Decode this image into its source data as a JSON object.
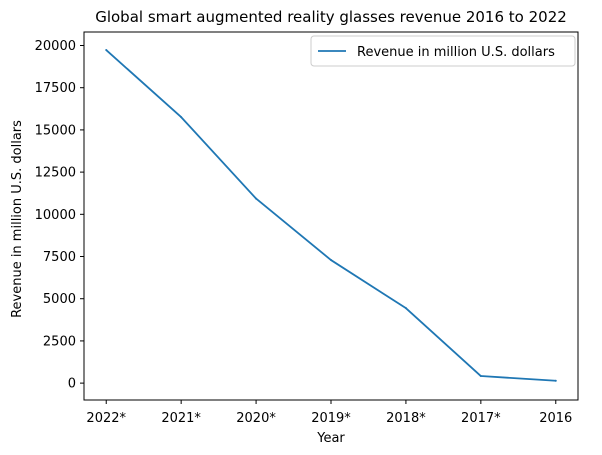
{
  "chart_data": {
    "type": "line",
    "title": "Global smart augmented reality glasses revenue 2016 to 2022",
    "xlabel": "Year",
    "ylabel": "Revenue in million U.S. dollars",
    "categories": [
      "2022*",
      "2021*",
      "2020*",
      "2019*",
      "2018*",
      "2017*",
      "2016"
    ],
    "series": [
      {
        "name": "Revenue in million U.S. dollars",
        "values": [
          19730,
          15760,
          10930,
          7290,
          4440,
          420,
          140
        ],
        "color": "#1f77b4"
      }
    ],
    "yticks": [
      0,
      2500,
      5000,
      7500,
      10000,
      12500,
      15000,
      17500,
      20000
    ],
    "ylim": [
      -1000,
      20800
    ],
    "grid": false,
    "legend_position": "top-right"
  }
}
